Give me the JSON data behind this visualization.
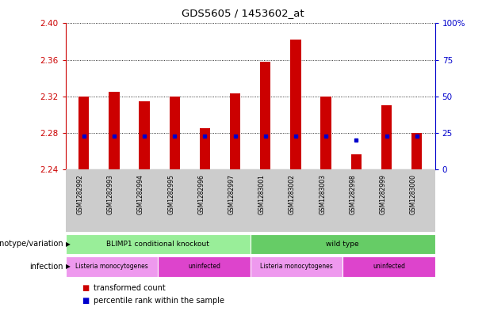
{
  "title": "GDS5605 / 1453602_at",
  "samples": [
    "GSM1282992",
    "GSM1282993",
    "GSM1282994",
    "GSM1282995",
    "GSM1282996",
    "GSM1282997",
    "GSM1283001",
    "GSM1283002",
    "GSM1283003",
    "GSM1282998",
    "GSM1282999",
    "GSM1283000"
  ],
  "transformed_counts": [
    2.32,
    2.325,
    2.315,
    2.32,
    2.285,
    2.323,
    2.358,
    2.382,
    2.32,
    2.257,
    2.31,
    2.28
  ],
  "percentile_ranks": [
    23,
    23,
    23,
    23,
    23,
    23,
    23,
    23,
    23,
    20,
    23,
    23
  ],
  "y_min": 2.24,
  "y_max": 2.4,
  "y_ticks": [
    2.24,
    2.28,
    2.32,
    2.36,
    2.4
  ],
  "y2_ticks": [
    0,
    25,
    50,
    75,
    100
  ],
  "bar_color": "#cc0000",
  "dot_color": "#0000cc",
  "grid_color": "#000000",
  "bg_color": "#ffffff",
  "left_axis_color": "#cc0000",
  "right_axis_color": "#0000cc",
  "sample_bg_color": "#cccccc",
  "annotation_rows": [
    {
      "label": "genotype/variation",
      "groups": [
        {
          "text": "BLIMP1 conditional knockout",
          "start": 0,
          "end": 6,
          "color": "#99ee99"
        },
        {
          "text": "wild type",
          "start": 6,
          "end": 12,
          "color": "#66cc66"
        }
      ]
    },
    {
      "label": "infection",
      "groups": [
        {
          "text": "Listeria monocytogenes",
          "start": 0,
          "end": 3,
          "color": "#ee99ee"
        },
        {
          "text": "uninfected",
          "start": 3,
          "end": 6,
          "color": "#dd44cc"
        },
        {
          "text": "Listeria monocytogenes",
          "start": 6,
          "end": 9,
          "color": "#ee99ee"
        },
        {
          "text": "uninfected",
          "start": 9,
          "end": 12,
          "color": "#dd44cc"
        }
      ]
    }
  ],
  "legend": [
    {
      "color": "#cc0000",
      "label": "transformed count"
    },
    {
      "color": "#0000cc",
      "label": "percentile rank within the sample"
    }
  ]
}
